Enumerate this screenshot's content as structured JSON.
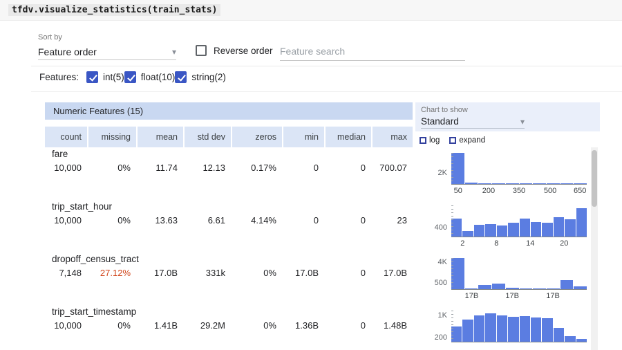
{
  "code": "tfdv.visualize_statistics(train_stats)",
  "controls": {
    "sort_by_label": "Sort by",
    "sort_by_value": "Feature order",
    "reverse_order_label": "Reverse order",
    "search_placeholder": "Feature search",
    "features_label": "Features:",
    "feature_filters": [
      {
        "label": "int(5)",
        "checked": true
      },
      {
        "label": "float(10)",
        "checked": true
      },
      {
        "label": "string(2)",
        "checked": true
      }
    ]
  },
  "chart_panel": {
    "label": "Chart to show",
    "value": "Standard",
    "log_label": "log",
    "expand_label": "expand"
  },
  "table": {
    "title": "Numeric Features (15)",
    "columns": [
      "count",
      "missing",
      "mean",
      "std dev",
      "zeros",
      "min",
      "median",
      "max"
    ],
    "rows": [
      {
        "name": "fare",
        "missing_alert": false,
        "values": [
          "10,000",
          "0%",
          "11.74",
          "12.13",
          "0.17%",
          "0",
          "0",
          "700.07"
        ]
      },
      {
        "name": "trip_start_hour",
        "missing_alert": false,
        "values": [
          "10,000",
          "0%",
          "13.63",
          "6.61",
          "4.14%",
          "0",
          "0",
          "23"
        ]
      },
      {
        "name": "dropoff_census_tract",
        "missing_alert": true,
        "values": [
          "7,148",
          "27.12%",
          "17.0B",
          "331k",
          "0%",
          "17.0B",
          "0",
          "17.0B"
        ]
      },
      {
        "name": "trip_start_timestamp",
        "missing_alert": false,
        "values": [
          "10,000",
          "0%",
          "1.41B",
          "29.2M",
          "0%",
          "1.36B",
          "0",
          "1.48B"
        ]
      }
    ]
  },
  "chart_data": [
    {
      "type": "bar",
      "feature": "fare",
      "bars": [
        1,
        0.04,
        0.025,
        0.02,
        0.015,
        0.012,
        0.01,
        0.01,
        0.008,
        0.015
      ],
      "x_ticks": [
        {
          "label": "50",
          "pos": 0.05
        },
        {
          "label": "200",
          "pos": 0.275
        },
        {
          "label": "350",
          "pos": 0.5
        },
        {
          "label": "500",
          "pos": 0.73
        },
        {
          "label": "650",
          "pos": 0.95
        }
      ],
      "y_ticks": [
        {
          "label": "2K",
          "pos": 0.62
        }
      ]
    },
    {
      "type": "bar",
      "feature": "trip_start_hour",
      "bars": [
        0.58,
        0.17,
        0.38,
        0.4,
        0.36,
        0.44,
        0.58,
        0.46,
        0.44,
        0.62,
        0.55,
        0.92
      ],
      "x_ticks": [
        {
          "label": "2",
          "pos": 0.083
        },
        {
          "label": "8",
          "pos": 0.333
        },
        {
          "label": "14",
          "pos": 0.583
        },
        {
          "label": "20",
          "pos": 0.833
        }
      ],
      "y_ticks": [
        {
          "label": "400",
          "pos": 0.7
        }
      ]
    },
    {
      "type": "bar",
      "feature": "dropoff_census_tract",
      "bars": [
        1,
        0.02,
        0.14,
        0.17,
        0.05,
        0.03,
        0.02,
        0.02,
        0.3,
        0.08
      ],
      "x_ticks": [
        {
          "label": "17B",
          "pos": 0.15
        },
        {
          "label": "17B",
          "pos": 0.45
        },
        {
          "label": "17B",
          "pos": 0.75
        }
      ],
      "y_ticks": [
        {
          "label": "4K",
          "pos": 0.12
        },
        {
          "label": "500",
          "pos": 0.78
        }
      ]
    },
    {
      "type": "bar",
      "feature": "trip_start_timestamp",
      "bars": [
        0.5,
        0.72,
        0.85,
        0.92,
        0.85,
        0.8,
        0.83,
        0.78,
        0.75,
        0.45,
        0.17,
        0.1
      ],
      "x_ticks": [],
      "y_ticks": [
        {
          "label": "1K",
          "pos": 0.15
        },
        {
          "label": "200",
          "pos": 0.85
        }
      ]
    }
  ],
  "colors": {
    "accent_blue": "#3a56c4",
    "bar_blue": "#5b7de1",
    "table_header_blue": "#c9d8f1",
    "column_header_blue": "#dbe5f6",
    "missing_alert_red": "#d1451a"
  }
}
